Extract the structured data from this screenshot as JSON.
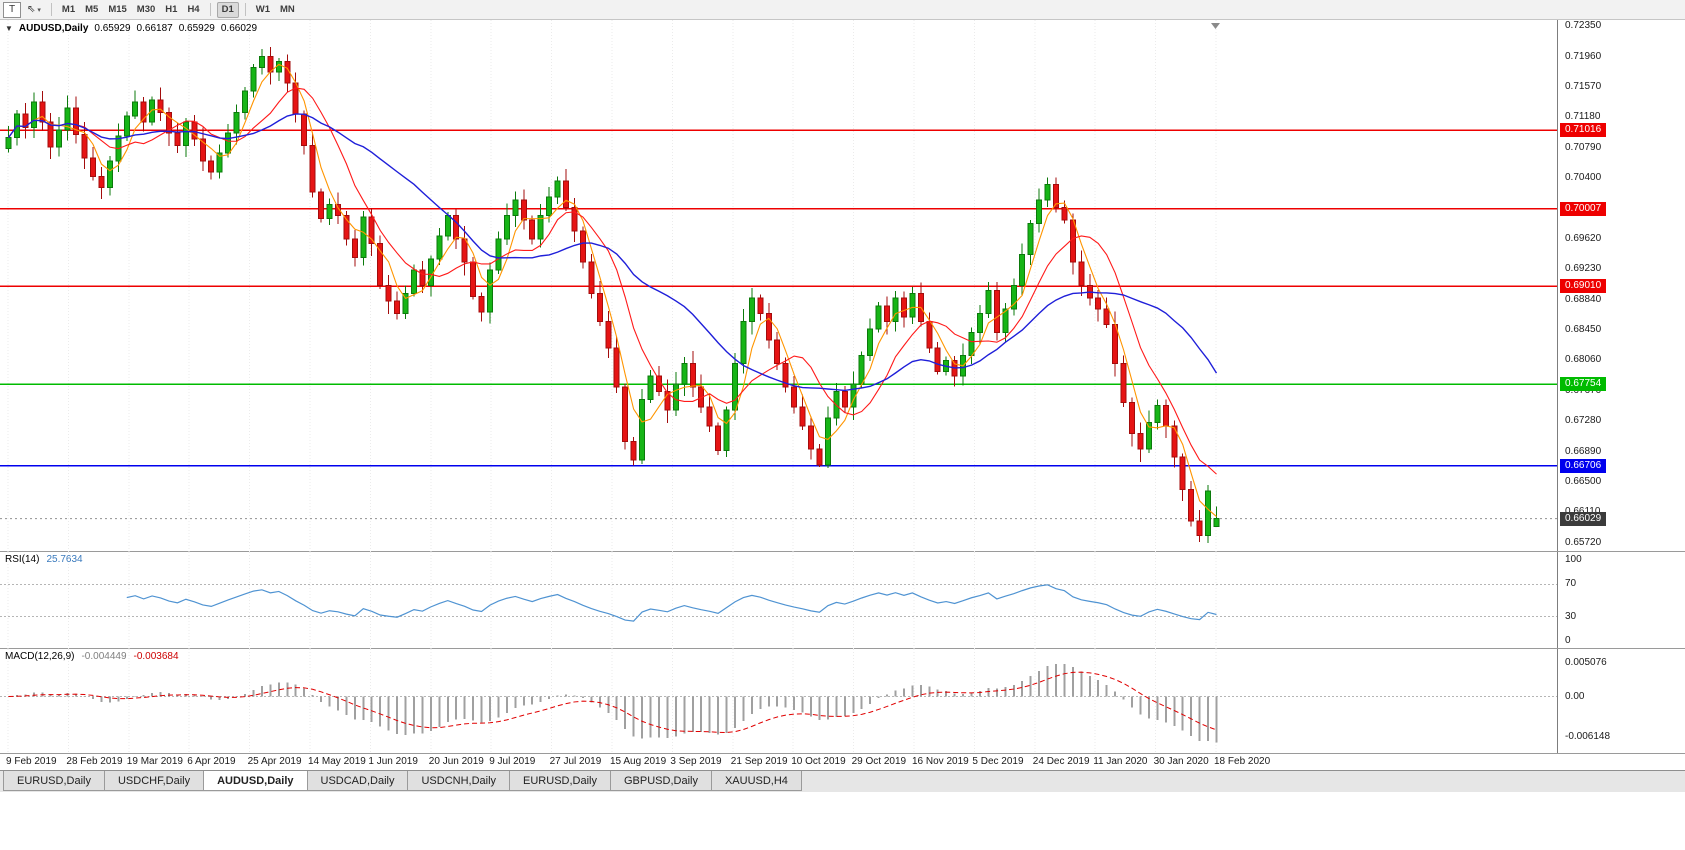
{
  "toolbar": {
    "t_label": "T",
    "cursor_glyph": "⇖",
    "caret": "▾",
    "timeframes": [
      "M1",
      "M5",
      "M15",
      "M30",
      "H1",
      "H4",
      "D1",
      "W1",
      "MN"
    ],
    "active_timeframe": "D1"
  },
  "chart": {
    "header": {
      "caret": "▼",
      "symbol": "AUDUSD,Daily",
      "open": "0.65929",
      "high": "0.66187",
      "low": "0.65929",
      "close": "0.66029"
    }
  },
  "chart_data": {
    "type": "candlestick",
    "symbol": "AUDUSD",
    "timeframe": "Daily",
    "x_dates": [
      "9 Feb 2019",
      "28 Feb 2019",
      "19 Mar 2019",
      "6 Apr 2019",
      "25 Apr 2019",
      "14 May 2019",
      "1 Jun 2019",
      "20 Jun 2019",
      "9 Jul 2019",
      "27 Jul 2019",
      "15 Aug 2019",
      "3 Sep 2019",
      "21 Sep 2019",
      "10 Oct 2019",
      "29 Oct 2019",
      "16 Nov 2019",
      "5 Dec 2019",
      "24 Dec 2019",
      "11 Jan 2020",
      "30 Jan 2020",
      "18 Feb 2020"
    ],
    "price_axis_labels": [
      "0.72350",
      "0.71960",
      "0.71570",
      "0.71180",
      "0.70790",
      "0.70400",
      "0.70010",
      "0.69620",
      "0.69230",
      "0.68840",
      "0.68450",
      "0.68060",
      "0.67670",
      "0.67280",
      "0.66890",
      "0.66500",
      "0.66110",
      "0.65720"
    ],
    "price_range": {
      "max": 0.7243,
      "min": 0.656
    },
    "candles": {
      "first_open": 0.7078,
      "up_color": "#17b517",
      "up_stroke": "#0b7a0b",
      "down_color": "#e61414",
      "down_stroke": "#a30c0c",
      "closes": [
        0.7092,
        0.7122,
        0.7105,
        0.7138,
        0.7112,
        0.708,
        0.7102,
        0.713,
        0.7096,
        0.7066,
        0.7042,
        0.7028,
        0.7062,
        0.7094,
        0.712,
        0.7138,
        0.7112,
        0.714,
        0.7124,
        0.7098,
        0.7082,
        0.7112,
        0.709,
        0.7062,
        0.7048,
        0.7072,
        0.7098,
        0.7124,
        0.7152,
        0.7182,
        0.7196,
        0.7176,
        0.719,
        0.7162,
        0.7122,
        0.7082,
        0.7022,
        0.6988,
        0.7006,
        0.6992,
        0.6962,
        0.6938,
        0.699,
        0.6956,
        0.6902,
        0.6882,
        0.6866,
        0.6892,
        0.6922,
        0.6902,
        0.6936,
        0.6966,
        0.6992,
        0.6962,
        0.6932,
        0.6888,
        0.6868,
        0.6922,
        0.6962,
        0.6992,
        0.7012,
        0.6986,
        0.6962,
        0.6992,
        0.7016,
        0.7036,
        0.7002,
        0.6972,
        0.6932,
        0.6892,
        0.6856,
        0.6822,
        0.6772,
        0.6702,
        0.6678,
        0.6756,
        0.6786,
        0.6766,
        0.6742,
        0.6776,
        0.6802,
        0.6772,
        0.6746,
        0.6722,
        0.669,
        0.6742,
        0.6802,
        0.6856,
        0.6886,
        0.6866,
        0.6832,
        0.6802,
        0.6772,
        0.6746,
        0.6722,
        0.6692,
        0.6672,
        0.6732,
        0.6766,
        0.6746,
        0.6776,
        0.6812,
        0.6846,
        0.6876,
        0.6856,
        0.6886,
        0.6862,
        0.6892,
        0.6856,
        0.6822,
        0.6792,
        0.6806,
        0.6786,
        0.6812,
        0.6842,
        0.6866,
        0.6896,
        0.6842,
        0.6872,
        0.6902,
        0.6942,
        0.6982,
        0.7012,
        0.7032,
        0.7002,
        0.6986,
        0.6932,
        0.6902,
        0.6886,
        0.6872,
        0.6852,
        0.6802,
        0.6752,
        0.6712,
        0.6692,
        0.6726,
        0.6748,
        0.6722,
        0.6682,
        0.664,
        0.66,
        0.6581,
        0.6638,
        0.66029
      ],
      "overrides": [
        {
          "i": 30,
          "h": 0.7206
        },
        {
          "i": 65,
          "h": 0.7042
        },
        {
          "i": 74,
          "l": 0.6671
        },
        {
          "i": 96,
          "l": 0.6669
        },
        {
          "i": 123,
          "h": 0.7041
        },
        {
          "i": 141,
          "l": 0.6573
        },
        {
          "i": 143,
          "o": 0.65929,
          "h": 0.66187,
          "l": 0.65929
        }
      ]
    },
    "moving_averages": [
      {
        "name": "ma-fast-orange",
        "color": "#ff9500",
        "window": 4,
        "width": 1.1
      },
      {
        "name": "ma-mid-red",
        "color": "#ff1a1a",
        "window": 9,
        "width": 1.1
      },
      {
        "name": "ma-slow-blue",
        "color": "#1f1fd9",
        "window": 22,
        "width": 1.4
      }
    ],
    "levels": [
      {
        "price": 0.71016,
        "label": "0.71016",
        "color": "#ee0000"
      },
      {
        "price": 0.70007,
        "label": "0.70007",
        "color": "#ee0000"
      },
      {
        "price": 0.6901,
        "label": "0.69010",
        "color": "#ee0000"
      },
      {
        "price": 0.67754,
        "label": "0.67754",
        "color": "#00bb00"
      },
      {
        "price": 0.66706,
        "label": "0.66706",
        "color": "#0000ee"
      }
    ],
    "current_price": {
      "value": 0.66029,
      "label": "0.66029",
      "color": "#3b3b3b"
    },
    "rsi": {
      "label": "RSI(14)",
      "value_label": "25.7634",
      "period": 14,
      "levels": [
        70,
        30
      ],
      "axis_labels": [
        "100",
        "70",
        "30",
        "0"
      ],
      "color": "#4f93d2",
      "range": [
        0,
        100
      ]
    },
    "macd": {
      "label": "MACD(12,26,9)",
      "macd_label": "-0.004449",
      "signal_label": "-0.003684",
      "fast": 12,
      "slow": 26,
      "signal": 9,
      "axis_labels": [
        "0.005076",
        "0.00",
        "-0.006148"
      ],
      "range": [
        -0.0075,
        0.006
      ],
      "hist_color": "#a0a0a0",
      "signal_color": "#e00000"
    },
    "grid": {
      "color": "#ebebeb",
      "style": "dotted-vertical"
    }
  },
  "tabs": {
    "items": [
      "EURUSD,Daily",
      "USDCHF,Daily",
      "AUDUSD,Daily",
      "USDCAD,Daily",
      "USDCNH,Daily",
      "EURUSD,Daily",
      "GBPUSD,Daily",
      "XAUUSD,H4"
    ],
    "active_index": 2
  }
}
